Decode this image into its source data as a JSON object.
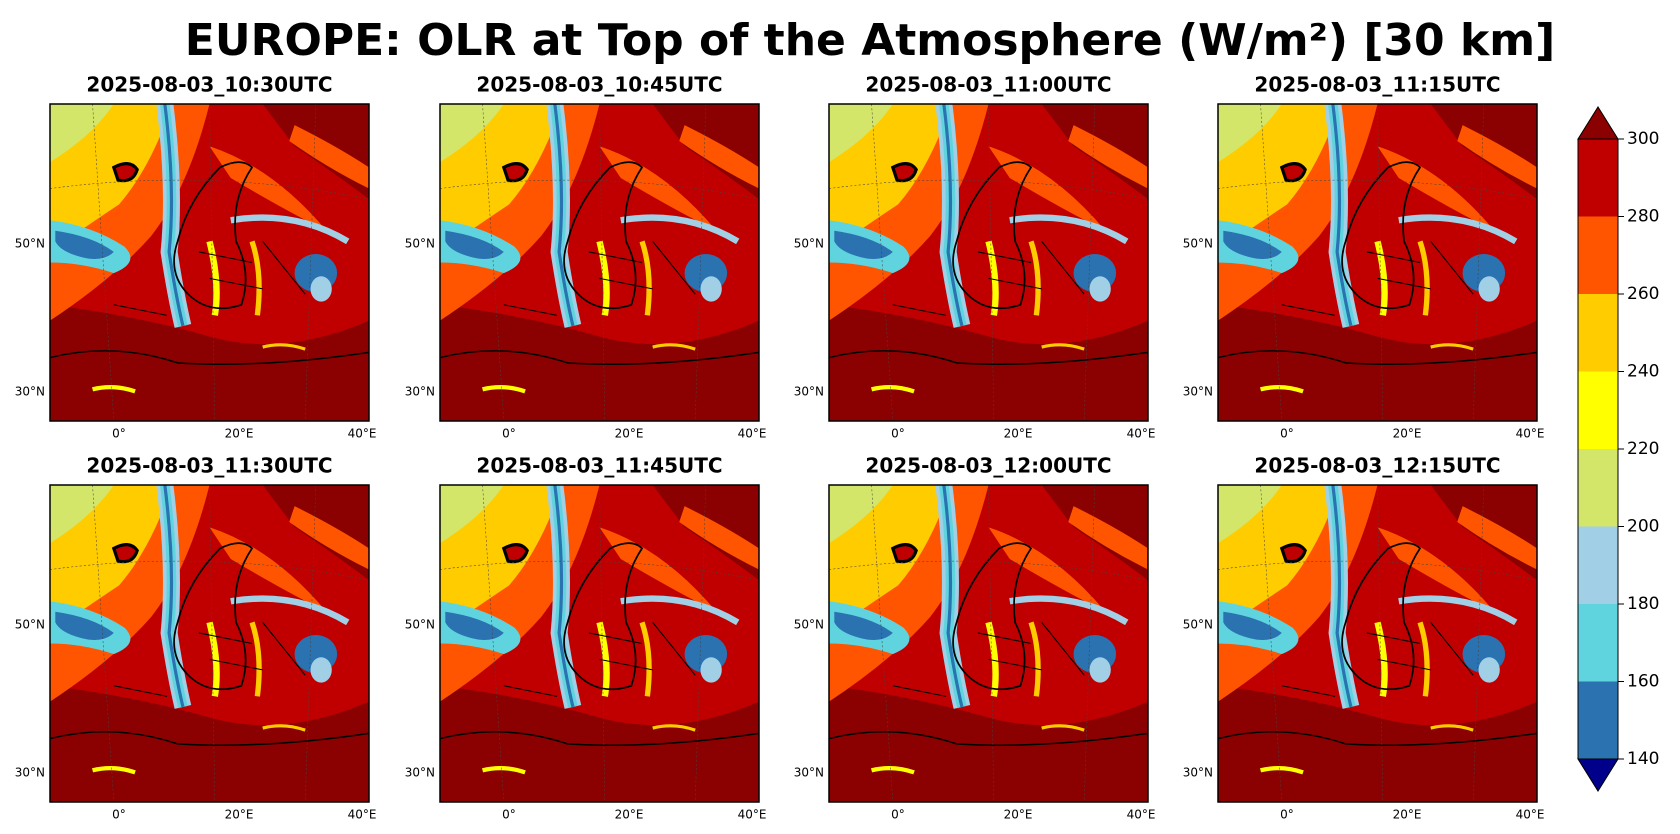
{
  "title": "EUROPE: OLR at Top of the Atmosphere (W/m²) [30 km]",
  "panels": [
    {
      "title": "2025-08-03_10:30UTC"
    },
    {
      "title": "2025-08-03_10:45UTC"
    },
    {
      "title": "2025-08-03_11:00UTC"
    },
    {
      "title": "2025-08-03_11:15UTC"
    },
    {
      "title": "2025-08-03_11:30UTC"
    },
    {
      "title": "2025-08-03_11:45UTC"
    },
    {
      "title": "2025-08-03_12:00UTC"
    },
    {
      "title": "2025-08-03_12:15UTC"
    }
  ],
  "lat_labels": [
    "50°N",
    "30°N"
  ],
  "lon_labels": [
    "0°",
    "20°E",
    "40°E"
  ],
  "colorbar": {
    "ticks": [
      140,
      160,
      180,
      200,
      220,
      240,
      260,
      280,
      300
    ],
    "colors": [
      "#2a72b0",
      "#5fd4de",
      "#a0cfe6",
      "#d4e66a",
      "#ffff00",
      "#ffcc00",
      "#ff5500",
      "#c00000"
    ],
    "under": "#00008b",
    "over": "#8b0000"
  }
}
